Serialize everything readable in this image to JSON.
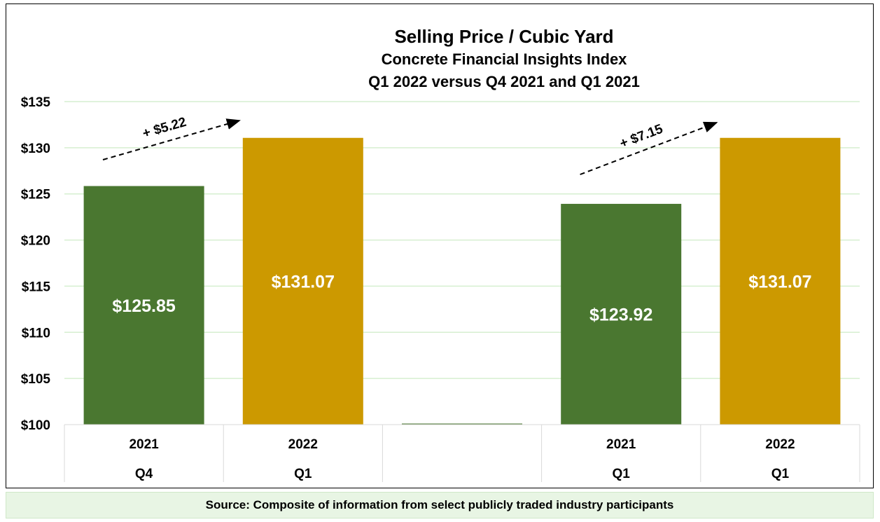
{
  "chart_data": {
    "type": "bar",
    "title": "Selling Price / Cubic Yard",
    "subtitle_lines": [
      "Concrete Financial Insights Index",
      "Q1 2022 versus Q4 2021 and Q1 2021"
    ],
    "categories": [
      {
        "year": "2021",
        "quarter": "Q4"
      },
      {
        "year": "2022",
        "quarter": "Q1"
      },
      {
        "year": "",
        "quarter": ""
      },
      {
        "year": "2021",
        "quarter": "Q1"
      },
      {
        "year": "2022",
        "quarter": "Q1"
      }
    ],
    "values": [
      125.85,
      131.07,
      100,
      123.92,
      131.07
    ],
    "data_labels": [
      "$125.85",
      "$131.07",
      "",
      "$123.92",
      "$131.07"
    ],
    "bar_colors": [
      "#4a7730",
      "#cc9900",
      "#4a7730",
      "#4a7730",
      "#cc9900"
    ],
    "ylim": [
      100,
      135
    ],
    "yticks": [
      "$100",
      "$105",
      "$110",
      "$115",
      "$120",
      "$125",
      "$130",
      "$135"
    ],
    "grid": true,
    "gridline_color": "#d6efd0",
    "annotations": [
      {
        "text": "+ $5.22",
        "from_category": 0,
        "to_category": 1
      },
      {
        "text": "+ $7.15",
        "from_category": 3,
        "to_category": 4
      }
    ]
  },
  "footer": {
    "source": "Source: Composite of information from select publicly traded industry participants"
  }
}
